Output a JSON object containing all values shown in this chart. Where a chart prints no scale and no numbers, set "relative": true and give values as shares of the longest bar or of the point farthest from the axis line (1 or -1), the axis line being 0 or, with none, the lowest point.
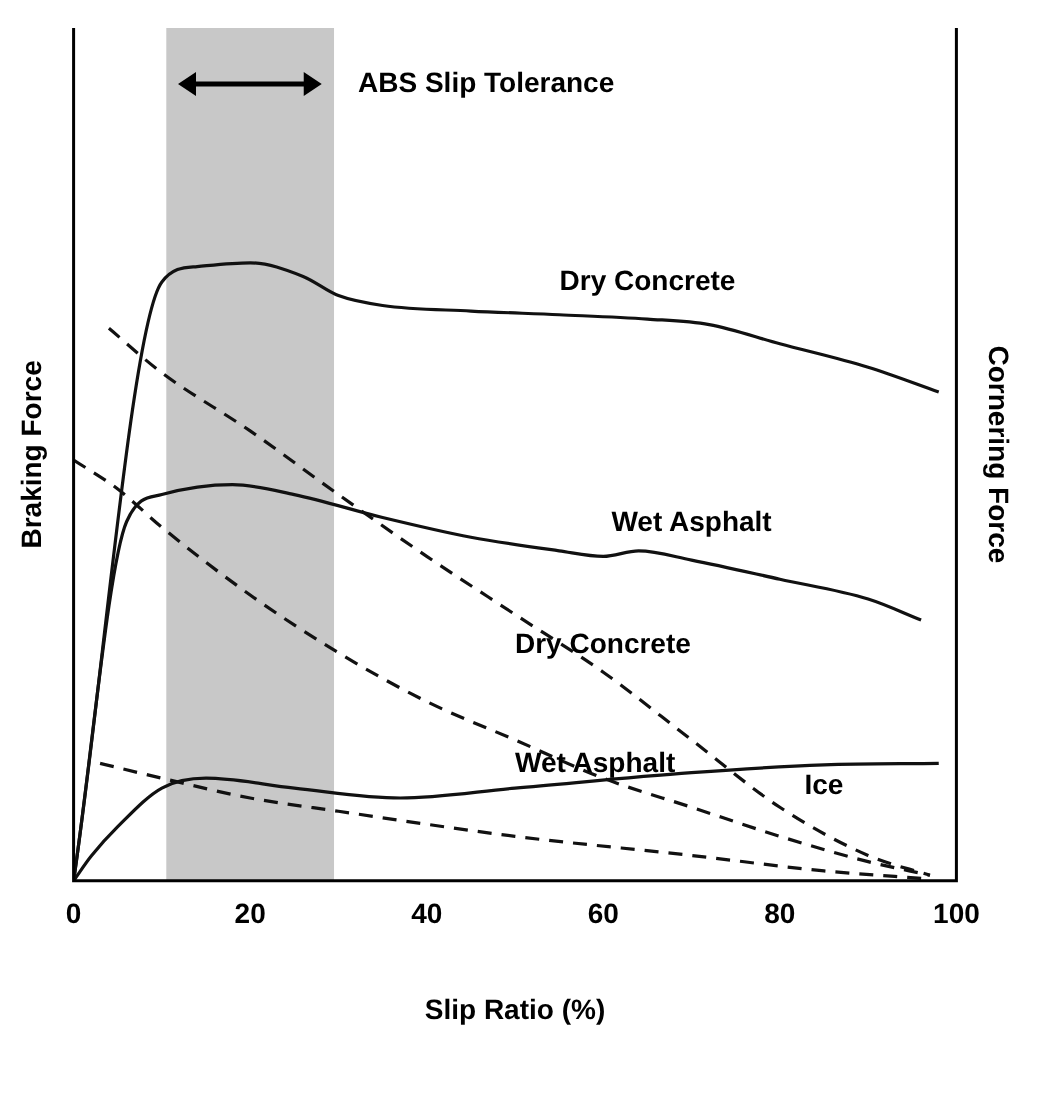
{
  "chart_data": {
    "type": "line",
    "relative": true,
    "xlabel": "Slip Ratio (%)",
    "ylabel": "Braking Force",
    "y2label": "Cornering Force",
    "xlim": [
      0,
      100
    ],
    "xticks": [
      0,
      20,
      40,
      60,
      80,
      100
    ],
    "grid": false,
    "legend": false,
    "marker": "none",
    "bands": [
      {
        "axis": "x",
        "from": 10.5,
        "to": 29.5,
        "label": "ABS Slip Tolerance",
        "color": "#c8c8c8"
      }
    ],
    "series": [
      {
        "name": "Dry Concrete",
        "color": "#111111",
        "line_style": "solid",
        "x": [
          0,
          10,
          14,
          20,
          26,
          30,
          35,
          45,
          55,
          65,
          72,
          80,
          90,
          98
        ],
        "values": [
          0,
          0.969,
          0.994,
          1.0,
          0.978,
          0.947,
          0.931,
          0.922,
          0.916,
          0.909,
          0.9,
          0.869,
          0.831,
          0.791
        ]
      },
      {
        "name": "Wet Asphalt",
        "color": "#111111",
        "line_style": "solid",
        "x": [
          0,
          6,
          10,
          18,
          25,
          35,
          45,
          55,
          60,
          64,
          70,
          80,
          90,
          96
        ],
        "values": [
          0,
          0.581,
          0.625,
          0.641,
          0.625,
          0.588,
          0.556,
          0.534,
          0.525,
          0.534,
          0.519,
          0.488,
          0.456,
          0.422
        ]
      },
      {
        "name": "Ice",
        "color": "#111111",
        "line_style": "solid",
        "x": [
          0,
          2,
          5,
          10,
          15,
          25,
          37,
          50,
          70,
          85,
          98
        ],
        "values": [
          0,
          0.04,
          0.0875,
          0.15,
          0.166,
          0.15,
          0.134,
          0.15,
          0.175,
          0.1875,
          0.19
        ]
      },
      {
        "name": "Dry Concrete",
        "color": "#111111",
        "line_style": "dashed",
        "x": [
          4,
          10,
          20,
          30,
          40,
          50,
          60,
          70,
          80,
          90,
          97
        ],
        "values": [
          0.894,
          0.822,
          0.728,
          0.625,
          0.525,
          0.431,
          0.3375,
          0.228,
          0.119,
          0.041,
          0.009
        ]
      },
      {
        "name": "Wet Asphalt",
        "color": "#111111",
        "line_style": "dashed",
        "x": [
          0,
          5,
          10,
          20,
          30,
          40,
          50,
          60,
          70,
          80,
          90,
          97
        ],
        "values": [
          0.681,
          0.634,
          0.572,
          0.4625,
          0.369,
          0.29,
          0.228,
          0.166,
          0.119,
          0.072,
          0.031,
          0.009
        ]
      },
      {
        "color": "#111111",
        "line_style": "dashed",
        "x": [
          3,
          10,
          20,
          30,
          50,
          70,
          85,
          97
        ],
        "values": [
          0.19,
          0.166,
          0.134,
          0.1125,
          0.072,
          0.041,
          0.016,
          0.003
        ]
      }
    ]
  }
}
